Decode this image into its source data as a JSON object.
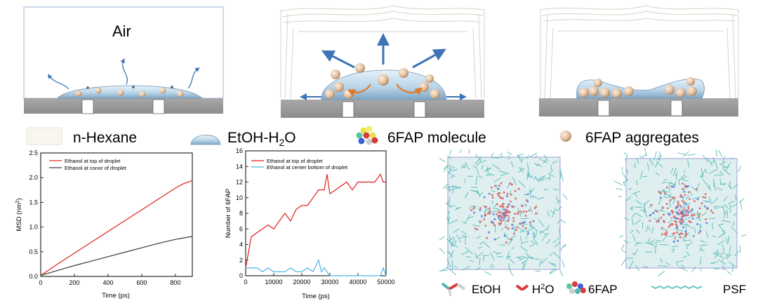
{
  "colors": {
    "substrate": "#9e9e9e",
    "droplet": "#b9d6ea",
    "droplet_edge": "#6f98b8",
    "aggregate": "#e6c7aa",
    "arrow_blue": "#3e73b6",
    "arrow_orange": "#e07a2a",
    "series_red": "#e0201b",
    "series_black": "#3a3a3a",
    "series_blue": "#4fb3e6",
    "molecule_teal": "#4fb5b5"
  },
  "panels": {
    "air_label": "Air"
  },
  "legend": {
    "hexane": "n-Hexane",
    "etoh_h2o_prefix": "EtOH-H",
    "etoh_h2o_sub": "2",
    "etoh_h2o_suffix": "O",
    "molecule": "6FAP molecule",
    "aggregates": "6FAP aggregates"
  },
  "chart_data": [
    {
      "type": "line",
      "xlabel": "Time (ps)",
      "ylabel_prefix": "MSD (nm",
      "ylabel_sup": "2",
      "ylabel_suffix": ")",
      "xlim": [
        0,
        900
      ],
      "ylim": [
        0,
        2.5
      ],
      "xticks": [
        0,
        200,
        400,
        600,
        800
      ],
      "yticks": [
        0.0,
        0.5,
        1.0,
        1.5,
        2.0,
        2.5
      ],
      "ytick_labels": [
        "0.0",
        "0.5",
        "1.0",
        "1.5",
        "2.0",
        "2.5"
      ],
      "legend_placement": "top-left",
      "series": [
        {
          "name": "Ethanol at top of droplet",
          "color": "#e0201b",
          "x": [
            0,
            100,
            200,
            300,
            400,
            500,
            600,
            700,
            800,
            850,
            900
          ],
          "y": [
            0.02,
            0.25,
            0.47,
            0.69,
            0.91,
            1.13,
            1.35,
            1.57,
            1.79,
            1.88,
            1.94
          ]
        },
        {
          "name": "Ethanol at conor of droplet",
          "color": "#3a3a3a",
          "x": [
            0,
            100,
            200,
            300,
            400,
            500,
            600,
            700,
            800,
            900
          ],
          "y": [
            0.02,
            0.12,
            0.22,
            0.31,
            0.4,
            0.49,
            0.58,
            0.67,
            0.75,
            0.81
          ]
        }
      ]
    },
    {
      "type": "line",
      "xlabel": "Time (ps)",
      "ylabel": "Number of 6FAP",
      "xlim": [
        0,
        50000
      ],
      "ylim": [
        0,
        16
      ],
      "xticks": [
        0,
        10000,
        20000,
        30000,
        40000,
        50000
      ],
      "yticks": [
        0,
        2,
        4,
        6,
        8,
        10,
        12,
        14,
        16
      ],
      "legend_placement": "top-left",
      "series": [
        {
          "name": "Ethanol at top of droplet",
          "color": "#e0201b",
          "x": [
            0,
            1000,
            2000,
            4000,
            6000,
            8000,
            10000,
            12000,
            14000,
            16000,
            18000,
            20000,
            22000,
            24000,
            26000,
            28000,
            29000,
            30000,
            32000,
            34000,
            36000,
            38000,
            40000,
            42000,
            44000,
            46000,
            48000,
            49000,
            50000
          ],
          "y": [
            1,
            3,
            5,
            5.5,
            6,
            6.5,
            6,
            7,
            8,
            7,
            8.5,
            9,
            9,
            10,
            11,
            11,
            13,
            10.5,
            11,
            11.5,
            12,
            11,
            12,
            12,
            12,
            12,
            13,
            12,
            12
          ]
        },
        {
          "name": "Ethanol at center bottom of droplet",
          "color": "#4fb3e6",
          "x": [
            0,
            2000,
            4000,
            6000,
            8000,
            10000,
            12000,
            14000,
            16000,
            18000,
            20000,
            22000,
            24000,
            26000,
            27000,
            28000,
            30000,
            35000,
            40000,
            45000,
            48000,
            49000,
            50000
          ],
          "y": [
            1,
            1,
            1,
            0.5,
            1,
            0.5,
            0.5,
            0.5,
            1,
            0.5,
            0.5,
            1,
            0.5,
            2,
            0.5,
            1,
            0,
            0,
            0,
            0,
            0,
            1,
            0
          ]
        }
      ]
    }
  ],
  "molecule_legend": {
    "etoh": "EtOH",
    "h2o_prefix": "H",
    "h2o_sub": "2",
    "h2o_suffix": "O",
    "sixfap": "6FAP",
    "psf": "PSF"
  }
}
